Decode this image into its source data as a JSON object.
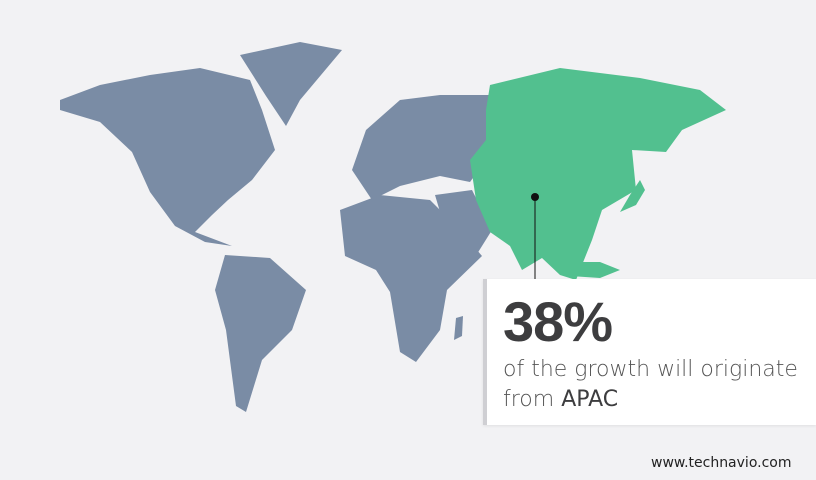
{
  "colors": {
    "background": "#f2f2f4",
    "land": "#7a8ca5",
    "highlight": "#52c08f",
    "marker": "#111111"
  },
  "highlighted_region": "APAC",
  "callout": {
    "value": "38%",
    "text": "of the growth will originate",
    "text2_prefix": "from ",
    "region": "APAC"
  },
  "footer": {
    "website": "www.technavio.com"
  }
}
